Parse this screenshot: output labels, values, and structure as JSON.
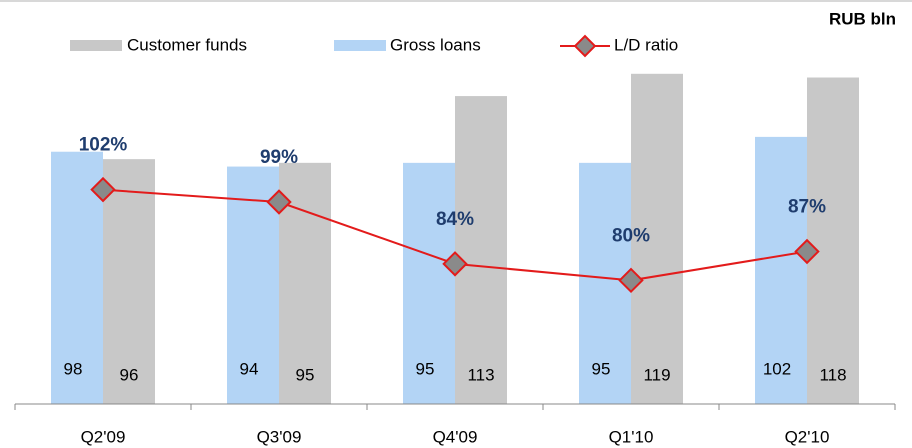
{
  "chart_data": {
    "type": "bar_line",
    "unit_label": "RUB  bln",
    "categories": [
      "Q2'09",
      "Q3'09",
      "Q4'09",
      "Q1'10",
      "Q2'10"
    ],
    "series": [
      {
        "name": "Gross loans",
        "color": "#b3d4f5",
        "values": [
          98,
          94,
          95,
          95,
          102
        ]
      },
      {
        "name": "Customer funds",
        "color": "#c8c8c8",
        "values": [
          96,
          95,
          113,
          119,
          118
        ]
      },
      {
        "name": "L/D ratio",
        "color": "#e31b1b",
        "axis": "y2",
        "values": [
          102,
          99,
          84,
          80,
          87
        ],
        "value_labels": [
          "102%",
          "99%",
          "84%",
          "80%",
          "87%"
        ]
      }
    ],
    "ylim": [
      30,
      130
    ],
    "y2lim": [
      50,
      140
    ]
  }
}
